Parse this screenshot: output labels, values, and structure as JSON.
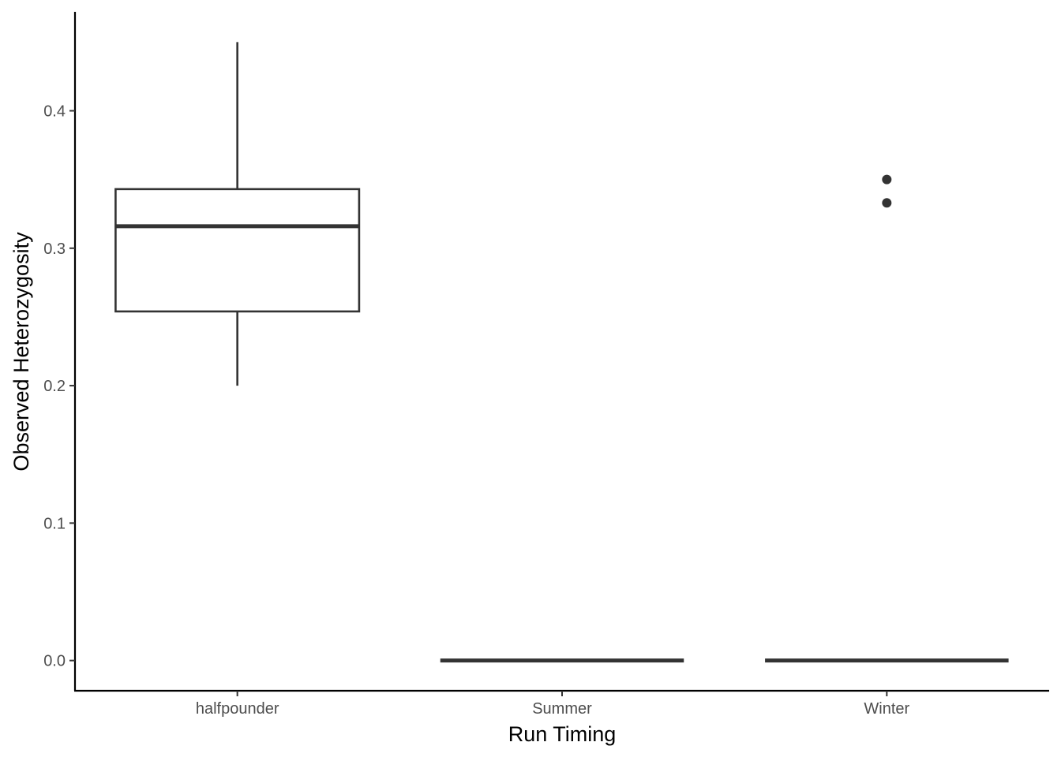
{
  "chart_data": {
    "type": "box",
    "title": "",
    "xlabel": "Run Timing",
    "ylabel": "Observed Heterozygosity",
    "ylim": [
      -0.022,
      0.472
    ],
    "yticks": [
      0.0,
      0.1,
      0.2,
      0.3,
      0.4
    ],
    "ytick_labels": [
      "0.0",
      "0.1",
      "0.2",
      "0.3",
      "0.4"
    ],
    "categories": [
      "halfpounder",
      "Summer",
      "Winter"
    ],
    "boxes": [
      {
        "category": "halfpounder",
        "whisker_low": 0.2,
        "q1": 0.254,
        "median": 0.316,
        "q3": 0.343,
        "whisker_high": 0.45,
        "outliers": []
      },
      {
        "category": "Summer",
        "whisker_low": 0.0,
        "q1": 0.0,
        "median": 0.0,
        "q3": 0.0,
        "whisker_high": 0.0,
        "outliers": []
      },
      {
        "category": "Winter",
        "whisker_low": 0.0,
        "q1": 0.0,
        "median": 0.0,
        "q3": 0.0,
        "whisker_high": 0.0,
        "outliers": [
          0.35,
          0.333
        ]
      }
    ],
    "grid": false,
    "colors": {
      "box_stroke": "#333333",
      "box_fill": "#ffffff",
      "axis": "#000000",
      "tick_text": "#4d4d4d"
    }
  }
}
